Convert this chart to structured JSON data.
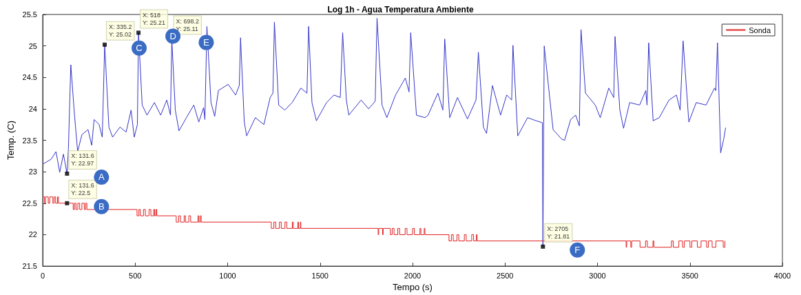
{
  "chart_data": {
    "type": "line",
    "title": "Log 1h - Agua Temperatura Ambiente",
    "xlabel": "Tempo (s)",
    "ylabel": "Temp. (C)",
    "xlim": [
      0,
      4000
    ],
    "xticks": [
      0,
      500,
      1000,
      1500,
      2000,
      2500,
      3000,
      3500,
      4000
    ],
    "ylim": [
      21.5,
      25.5
    ],
    "yticks": [
      21.5,
      22,
      22.5,
      23,
      23.5,
      24,
      24.5,
      25,
      25.5
    ],
    "grid": false,
    "legend": "top right",
    "marker": "none",
    "line_style": "solid",
    "series": [
      {
        "color": "#3535c8",
        "x": [
          0,
          46,
          72,
          92,
          112,
          131.6,
          139,
          152,
          172,
          189,
          212,
          245,
          265,
          278,
          305,
          322,
          335.2,
          358,
          378,
          418,
          451,
          478,
          495,
          512,
          518,
          538,
          564,
          604,
          638,
          671,
          691,
          698.2,
          717,
          737,
          777,
          817,
          844,
          870,
          877,
          888,
          910,
          930,
          950,
          1003,
          1043,
          1063,
          1070,
          1090,
          1103,
          1150,
          1196,
          1230,
          1245,
          1253,
          1276,
          1309,
          1349,
          1396,
          1429,
          1438,
          1456,
          1480,
          1535,
          1575,
          1609,
          1622,
          1642,
          1655,
          1722,
          1762,
          1798,
          1808,
          1835,
          1861,
          1908,
          1961,
          1981,
          1990,
          2021,
          2067,
          2084,
          2137,
          2164,
          2174,
          2201,
          2243,
          2297,
          2343,
          2356,
          2383,
          2400,
          2432,
          2476,
          2509,
          2536,
          2543,
          2569,
          2622,
          2669,
          2702,
          2705,
          2712,
          2760,
          2806,
          2822,
          2855,
          2882,
          2902,
          2911,
          2935,
          2988,
          3015,
          3061,
          3088,
          3095,
          3121,
          3141,
          3174,
          3228,
          3261,
          3268,
          3277,
          3301,
          3334,
          3387,
          3427,
          3447,
          3463,
          3494,
          3534,
          3587,
          3633,
          3640,
          3649,
          3666,
          3682,
          3693
        ],
        "values": [
          23.12,
          23.2,
          23.32,
          22.99,
          23.28,
          22.97,
          23.36,
          24.7,
          23.9,
          23.32,
          23.59,
          23.67,
          23.42,
          23.83,
          23.75,
          23.55,
          25.02,
          23.71,
          23.55,
          23.71,
          23.63,
          23.98,
          23.55,
          23.75,
          25.21,
          24.06,
          23.9,
          24.1,
          23.9,
          24.14,
          23.9,
          25.11,
          23.98,
          23.65,
          23.86,
          24.06,
          23.79,
          24.02,
          23.83,
          25.31,
          24.1,
          23.88,
          24.29,
          24.39,
          24.22,
          24.37,
          25.13,
          23.79,
          23.57,
          23.86,
          23.75,
          24.18,
          24.25,
          25.38,
          24.06,
          23.98,
          24.1,
          24.33,
          24.25,
          25.31,
          24.1,
          23.81,
          24.1,
          24.22,
          24.18,
          25.21,
          24.14,
          23.9,
          24.14,
          24.0,
          24.12,
          25.44,
          24.06,
          23.86,
          24.22,
          24.49,
          24.27,
          25.21,
          23.9,
          23.86,
          23.9,
          24.25,
          23.98,
          25.11,
          23.86,
          24.18,
          23.84,
          24.14,
          24.9,
          23.71,
          23.61,
          24.37,
          23.9,
          24.22,
          24.14,
          25.01,
          23.57,
          23.86,
          23.81,
          23.78,
          21.81,
          25.0,
          23.67,
          23.52,
          23.5,
          23.83,
          23.9,
          23.73,
          25.26,
          24.25,
          24.06,
          23.86,
          24.33,
          24.18,
          25.15,
          23.98,
          23.69,
          24.1,
          24.06,
          24.29,
          24.06,
          25.05,
          23.81,
          23.86,
          24.14,
          24.22,
          23.98,
          25.08,
          23.79,
          24.1,
          24.06,
          24.33,
          24.29,
          25.05,
          23.3,
          23.51,
          23.7
        ]
      },
      {
        "name": "Sonda",
        "type": "step",
        "color": "#e02020",
        "x": [
          0,
          10,
          15,
          30,
          38,
          55,
          62,
          70,
          80,
          85,
          131.6,
          165,
          172,
          180,
          190,
          200,
          212,
          225,
          232,
          239,
          510,
          520,
          528,
          545,
          555,
          575,
          585,
          600,
          605,
          612,
          617,
          722,
          735,
          745,
          765,
          772,
          790,
          800,
          840,
          845,
          853,
          857,
          1236,
          1250,
          1260,
          1280,
          1290,
          1310,
          1320,
          1350,
          1355,
          1380,
          1383,
          1393,
          1396,
          1814,
          1817,
          1838,
          1841,
          1880,
          1890,
          1900,
          1920,
          1930,
          1960,
          1970,
          2000,
          2010,
          2040,
          2045,
          2063,
          2067,
          2197,
          2210,
          2220,
          2240,
          2250,
          2280,
          2290,
          2320,
          2330,
          2345,
          2349,
          3155,
          3158,
          3180,
          3185,
          3230,
          3260,
          3270,
          3300,
          3305,
          3400,
          3410,
          3440,
          3460,
          3470,
          3500,
          3510,
          3540,
          3560,
          3590,
          3600,
          3620,
          3640,
          3680,
          3689
        ],
        "values": [
          22.6,
          22.5,
          22.6,
          22.5,
          22.6,
          22.5,
          22.6,
          22.5,
          22.6,
          22.5,
          22.5,
          22.4,
          22.5,
          22.4,
          22.5,
          22.4,
          22.5,
          22.4,
          22.5,
          22.4,
          22.3,
          22.4,
          22.3,
          22.4,
          22.3,
          22.4,
          22.3,
          22.4,
          22.3,
          22.4,
          22.3,
          22.2,
          22.3,
          22.2,
          22.3,
          22.2,
          22.3,
          22.2,
          22.3,
          22.2,
          22.3,
          22.2,
          22.1,
          22.2,
          22.1,
          22.2,
          22.1,
          22.2,
          22.1,
          22.2,
          22.1,
          22.2,
          22.1,
          22.2,
          22.1,
          22.0,
          22.1,
          22.0,
          22.1,
          22.0,
          22.1,
          22.0,
          22.1,
          22.0,
          22.1,
          22.0,
          22.1,
          22.0,
          22.1,
          22.0,
          22.1,
          22.0,
          21.9,
          22.0,
          21.9,
          22.0,
          21.9,
          22.0,
          21.9,
          22.0,
          21.9,
          22.0,
          21.9,
          21.8,
          21.9,
          21.8,
          21.9,
          21.8,
          21.9,
          21.8,
          21.9,
          21.8,
          21.9,
          21.8,
          21.9,
          21.8,
          21.9,
          21.8,
          21.9,
          21.8,
          21.9,
          21.8,
          21.9,
          21.8,
          21.9,
          21.8,
          21.9
        ]
      }
    ],
    "annotations": [
      {
        "text": "X: 131.6\nY: 22.97",
        "x": 131.6,
        "y": 22.97
      },
      {
        "text": "X: 131.6\nY: 22.5",
        "x": 131.6,
        "y": 22.5
      },
      {
        "text": "X: 335.2\nY: 25.02",
        "x": 335.2,
        "y": 25.02
      },
      {
        "text": "X: 518\nY: 25.21",
        "x": 518,
        "y": 25.21
      },
      {
        "text": "X: 698.2\nY: 25.11",
        "x": 698.2,
        "y": 25.11
      },
      {
        "text": "X: 2705\nY: 21.81",
        "x": 2705,
        "y": 21.81
      },
      "A",
      "B",
      "C",
      "D",
      "E",
      "F"
    ]
  }
}
